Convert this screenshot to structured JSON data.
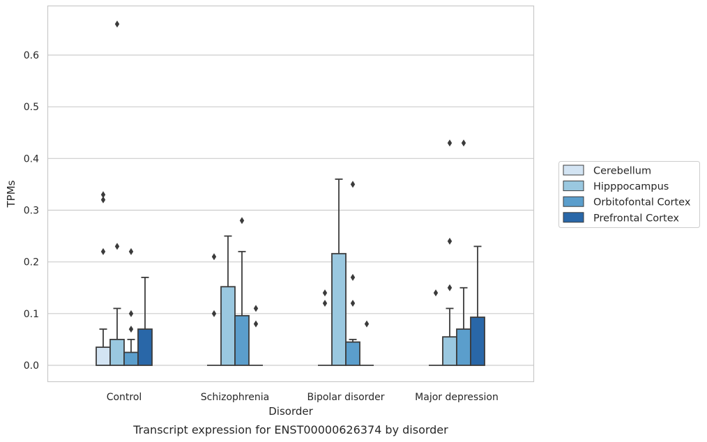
{
  "caption": "Transcript expression for ENST00000626374 by disorder",
  "colors": {
    "Cerebellum": "#d3e4f3",
    "Hipppocampus": "#9ac8e0",
    "Orbitofontal Cortex": "#5b9ecc",
    "Prefrontal Cortex": "#2967a8",
    "line": "#3b3b3b",
    "grid": "#cccccc",
    "spine": "#c8c8c8"
  },
  "chart_data": {
    "type": "bar",
    "xlabel": "Disorder",
    "ylabel": "TPMs",
    "ylim": [
      -0.032,
      0.695
    ],
    "yticks": [
      0.0,
      0.1,
      0.2,
      0.3,
      0.4,
      0.5,
      0.6
    ],
    "ytick_labels": [
      "0.0",
      "0.1",
      "0.2",
      "0.3",
      "0.4",
      "0.5",
      "0.6"
    ],
    "grid": true,
    "legend_position": "right, outside plot",
    "categories": [
      "Control",
      "Schizophrenia",
      "Bipolar disorder",
      "Major depression"
    ],
    "series": [
      {
        "name": "Cerebellum",
        "values": [
          0.035,
          0.0,
          0.0,
          0.0
        ],
        "whisker_high": [
          0.07,
          0.0,
          0.0,
          0.0
        ],
        "outliers": [
          [
            0.22,
            0.32,
            0.33
          ],
          [
            0.1,
            0.21
          ],
          [
            0.12,
            0.14
          ],
          [
            0.14
          ]
        ]
      },
      {
        "name": "Hipppocampus",
        "values": [
          0.05,
          0.152,
          0.216,
          0.055
        ],
        "whisker_high": [
          0.11,
          0.25,
          0.36,
          0.11
        ],
        "outliers": [
          [
            0.23,
            0.66
          ],
          [],
          [],
          [
            0.15,
            0.24,
            0.43
          ]
        ]
      },
      {
        "name": "Orbitofontal Cortex",
        "values": [
          0.025,
          0.096,
          0.045,
          0.07
        ],
        "whisker_high": [
          0.05,
          0.22,
          0.05,
          0.15
        ],
        "outliers": [
          [
            0.07,
            0.1,
            0.22
          ],
          [
            0.28
          ],
          [
            0.12,
            0.17,
            0.35
          ],
          [
            0.43
          ]
        ]
      },
      {
        "name": "Prefrontal Cortex",
        "values": [
          0.07,
          0.0,
          0.0,
          0.093
        ],
        "whisker_high": [
          0.17,
          0.0,
          0.0,
          0.23
        ],
        "outliers": [
          [],
          [
            0.08,
            0.11
          ],
          [
            0.08
          ],
          []
        ]
      }
    ]
  }
}
